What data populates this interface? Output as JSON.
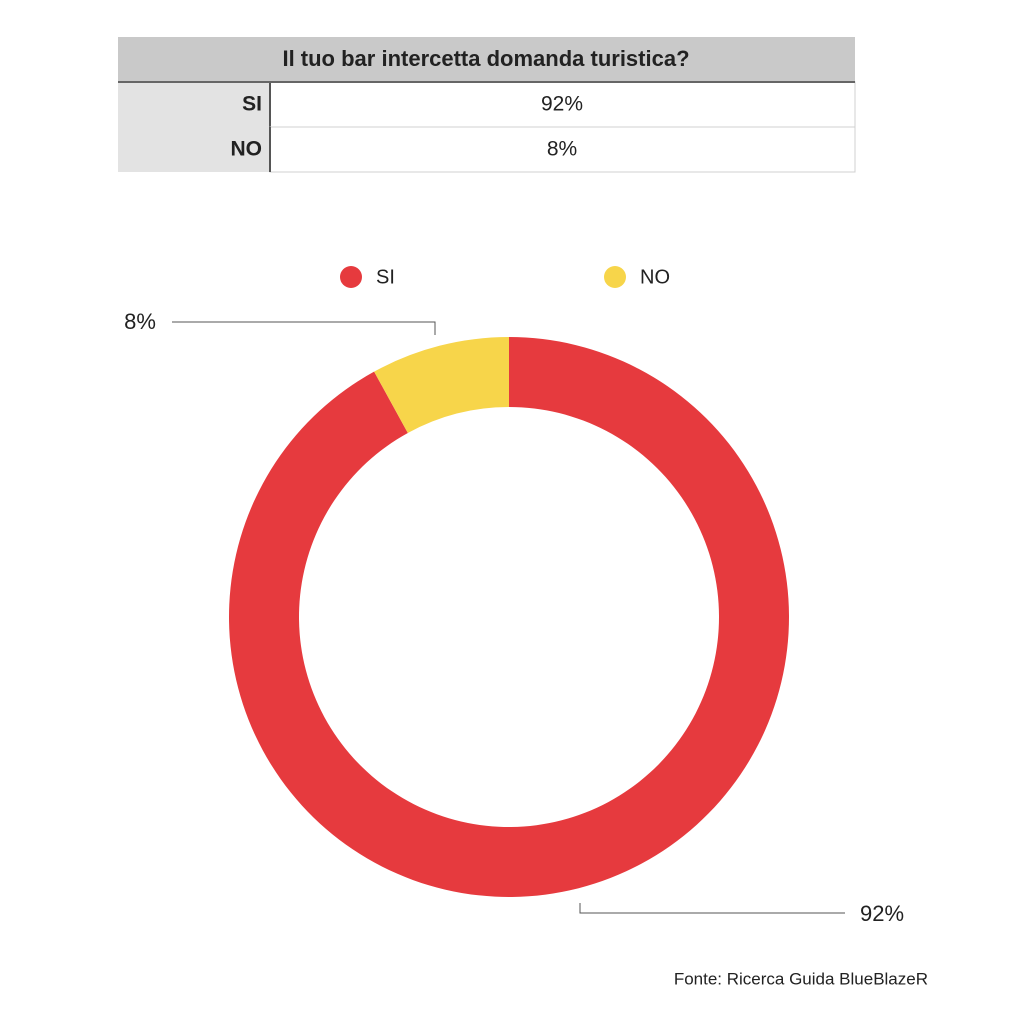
{
  "table": {
    "title": "Il tuo bar intercetta domanda turistica?",
    "rows": [
      [
        "SI",
        "92%"
      ],
      [
        "NO",
        "8%"
      ]
    ]
  },
  "chart_data": {
    "type": "donut",
    "categories": [
      "SI",
      "NO"
    ],
    "values": [
      92,
      8
    ],
    "value_labels": [
      "92%",
      "8%"
    ],
    "colors": [
      "#e63a3e",
      "#f7d54a"
    ],
    "legend": "top"
  },
  "source": "Fonte: Ricerca Guida BlueBlazeR"
}
